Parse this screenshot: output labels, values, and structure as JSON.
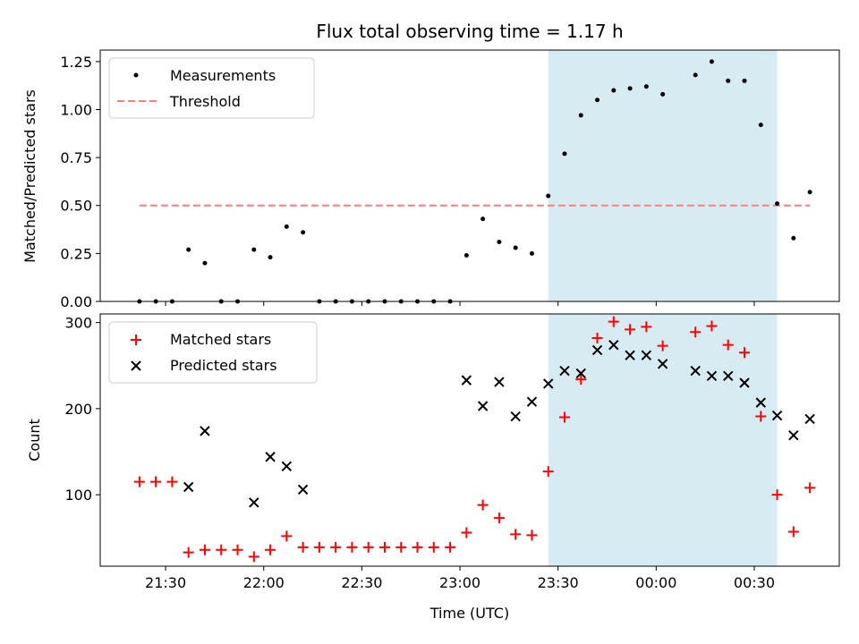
{
  "chart_data": [
    {
      "type": "scatter",
      "title": "Flux total observing time = 1.17 h",
      "ylabel": "Matched/Predicted stars",
      "xlabel": "",
      "xlim": [
        "21:10",
        "00:56"
      ],
      "ylim": [
        0,
        1.31
      ],
      "yticks": [
        0.0,
        0.25,
        0.5,
        0.75,
        1.0,
        1.25
      ],
      "ytick_labels": [
        "0.00",
        "0.25",
        "0.50",
        "0.75",
        "1.00",
        "1.25"
      ],
      "xticks": [
        "21:30",
        "22:00",
        "22:30",
        "23:00",
        "23:30",
        "00:00",
        "00:30"
      ],
      "shaded_span": [
        "23:27",
        "00:37"
      ],
      "legend": {
        "position": "top-left",
        "entries": [
          "Measurements",
          "Threshold"
        ]
      },
      "threshold": {
        "name": "Threshold",
        "value": 0.5,
        "x_range": [
          "21:22",
          "00:47"
        ],
        "color": "#ff7f7f"
      },
      "series": [
        {
          "name": "Measurements",
          "color": "#000000",
          "x": [
            "21:22",
            "21:27",
            "21:32",
            "21:37",
            "21:42",
            "21:47",
            "21:52",
            "21:57",
            "22:02",
            "22:07",
            "22:12",
            "22:17",
            "22:22",
            "22:27",
            "22:32",
            "22:37",
            "22:42",
            "22:47",
            "22:52",
            "22:57",
            "23:02",
            "23:07",
            "23:12",
            "23:17",
            "23:22",
            "23:27",
            "23:32",
            "23:37",
            "23:42",
            "23:47",
            "23:52",
            "23:57",
            "00:02",
            "00:07",
            "00:12",
            "00:17",
            "00:22",
            "00:27",
            "00:32",
            "00:37",
            "00:42",
            "00:47"
          ],
          "values": [
            0.0,
            0.0,
            0.0,
            0.27,
            0.2,
            0.0,
            0.0,
            0.27,
            0.23,
            0.39,
            0.36,
            0.0,
            0.0,
            0.0,
            0.0,
            0.0,
            0.0,
            0.0,
            0.0,
            0.0,
            0.24,
            0.43,
            0.31,
            0.28,
            0.25,
            0.55,
            0.77,
            0.97,
            1.05,
            1.1,
            1.11,
            1.12,
            1.08,
            null,
            1.18,
            1.25,
            1.15,
            1.15,
            0.92,
            0.51,
            0.33,
            0.57
          ]
        }
      ]
    },
    {
      "type": "scatter",
      "title": "",
      "ylabel": "Count",
      "xlabel": "Time (UTC)",
      "xlim": [
        "21:10",
        "00:56"
      ],
      "ylim": [
        17,
        310
      ],
      "yticks": [
        100,
        200,
        300
      ],
      "ytick_labels": [
        "100",
        "200",
        "300"
      ],
      "xticks": [
        "21:30",
        "22:00",
        "22:30",
        "23:00",
        "23:30",
        "00:00",
        "00:30"
      ],
      "shaded_span": [
        "23:27",
        "00:37"
      ],
      "legend": {
        "position": "top-left",
        "entries": [
          "Matched stars",
          "Predicted stars"
        ]
      },
      "series": [
        {
          "name": "Matched stars",
          "marker": "plus",
          "color": "#ff0000",
          "x": [
            "21:22",
            "21:27",
            "21:32",
            "21:37",
            "21:42",
            "21:47",
            "21:52",
            "21:57",
            "22:02",
            "22:07",
            "22:12",
            "22:17",
            "22:22",
            "22:27",
            "22:32",
            "22:37",
            "22:42",
            "22:47",
            "22:52",
            "22:57",
            "23:02",
            "23:07",
            "23:12",
            "23:17",
            "23:22",
            "23:27",
            "23:32",
            "23:37",
            "23:42",
            "23:47",
            "23:52",
            "23:57",
            "00:02",
            "00:07",
            "00:12",
            "00:17",
            "00:22",
            "00:27",
            "00:32",
            "00:37",
            "00:42",
            "00:47"
          ],
          "values": [
            115,
            115,
            115,
            33,
            36,
            36,
            36,
            28,
            36,
            52,
            39,
            39,
            39,
            39,
            39,
            39,
            39,
            39,
            39,
            39,
            56,
            88,
            73,
            54,
            53,
            127,
            190,
            234,
            282,
            301,
            292,
            295,
            273,
            null,
            289,
            296,
            274,
            265,
            191,
            100,
            57,
            108
          ]
        },
        {
          "name": "Predicted stars",
          "marker": "x",
          "color": "#000000",
          "x": [
            "21:37",
            "21:42",
            "21:57",
            "22:02",
            "22:07",
            "22:12",
            "23:02",
            "23:07",
            "23:12",
            "23:17",
            "23:22",
            "23:27",
            "23:32",
            "23:37",
            "23:42",
            "23:47",
            "23:52",
            "23:57",
            "00:02",
            "00:12",
            "00:17",
            "00:22",
            "00:27",
            "00:32",
            "00:37",
            "00:42",
            "00:47"
          ],
          "values": [
            109,
            174,
            91,
            144,
            133,
            106,
            233,
            203,
            231,
            191,
            208,
            229,
            244,
            241,
            268,
            274,
            262,
            262,
            252,
            244,
            238,
            238,
            230,
            207,
            192,
            169,
            188
          ]
        }
      ]
    }
  ]
}
